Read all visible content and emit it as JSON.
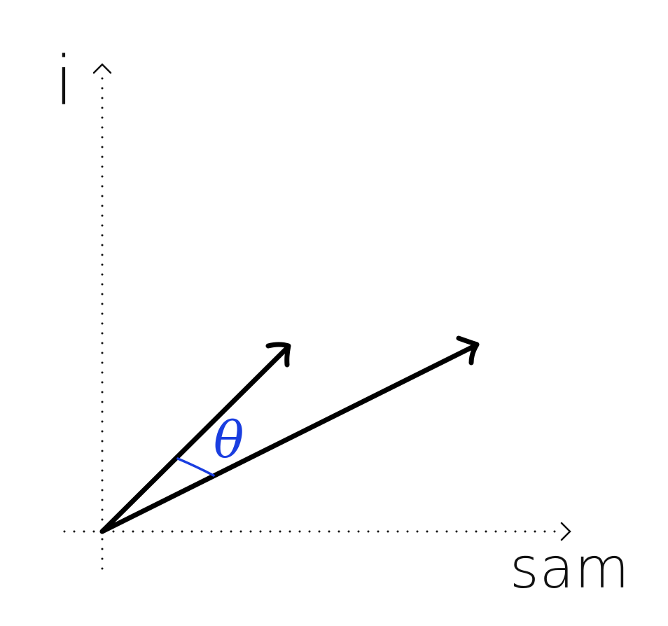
{
  "axes": {
    "y_label": "i",
    "x_label": "sam"
  },
  "angle": {
    "symbol": "θ"
  },
  "colors": {
    "vector": "#000000",
    "axis": "#111111",
    "angle_accent": "#1a3ee0"
  }
}
